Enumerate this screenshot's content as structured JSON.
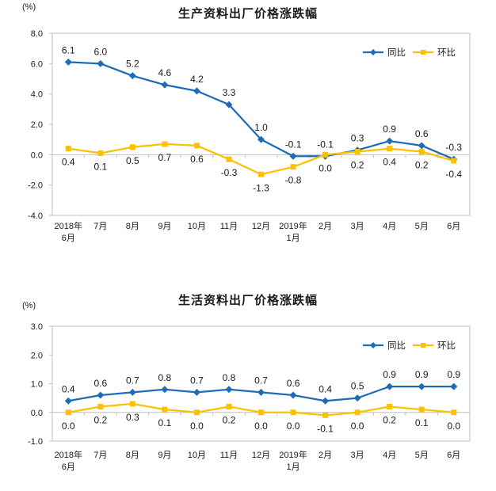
{
  "styles": {
    "axis_color": "#bfbfbf",
    "text_color": "#1a1a1a",
    "series_blue": "#1e6bb8",
    "series_yellow": "#ffc000",
    "background": "#ffffff"
  },
  "chart_data": [
    {
      "type": "line",
      "title": "生产资料出厂价格涨跌幅",
      "ylabel": "(%)",
      "xlabel": "",
      "categories": [
        "2018年\n6月",
        "7月",
        "8月",
        "9月",
        "10月",
        "11月",
        "12月",
        "2019年\n1月",
        "2月",
        "3月",
        "4月",
        "5月",
        "6月"
      ],
      "series": [
        {
          "name": "同比",
          "marker": "diamond",
          "color": "#1e6bb8",
          "values": [
            6.1,
            6.0,
            5.2,
            4.6,
            4.2,
            3.3,
            1.0,
            -0.1,
            -0.1,
            0.3,
            0.9,
            0.6,
            -0.3
          ]
        },
        {
          "name": "环比",
          "marker": "square",
          "color": "#ffc000",
          "values": [
            0.4,
            0.1,
            0.5,
            0.7,
            0.6,
            -0.3,
            -1.3,
            -0.8,
            0.0,
            0.2,
            0.4,
            0.2,
            -0.4
          ]
        }
      ],
      "ylim": [
        -4.0,
        8.0
      ],
      "ytick_step": 2.0,
      "grid": false,
      "zero_line": true,
      "legend_position": "top-right",
      "data_labels": true
    },
    {
      "type": "line",
      "title": "生活资料出厂价格涨跌幅",
      "ylabel": "(%)",
      "xlabel": "",
      "categories": [
        "2018年\n6月",
        "7月",
        "8月",
        "9月",
        "10月",
        "11月",
        "12月",
        "2019年\n1月",
        "2月",
        "3月",
        "4月",
        "5月",
        "6月"
      ],
      "series": [
        {
          "name": "同比",
          "marker": "diamond",
          "color": "#1e6bb8",
          "values": [
            0.4,
            0.6,
            0.7,
            0.8,
            0.7,
            0.8,
            0.7,
            0.6,
            0.4,
            0.5,
            0.9,
            0.9,
            0.9
          ]
        },
        {
          "name": "环比",
          "marker": "square",
          "color": "#ffc000",
          "values": [
            0.0,
            0.2,
            0.3,
            0.1,
            0.0,
            0.2,
            0.0,
            0.0,
            -0.1,
            0.0,
            0.2,
            0.1,
            0.0
          ]
        }
      ],
      "ylim": [
        -1.0,
        3.0
      ],
      "ytick_step": 1.0,
      "grid": false,
      "zero_line": true,
      "legend_position": "top-right",
      "data_labels": true
    }
  ]
}
